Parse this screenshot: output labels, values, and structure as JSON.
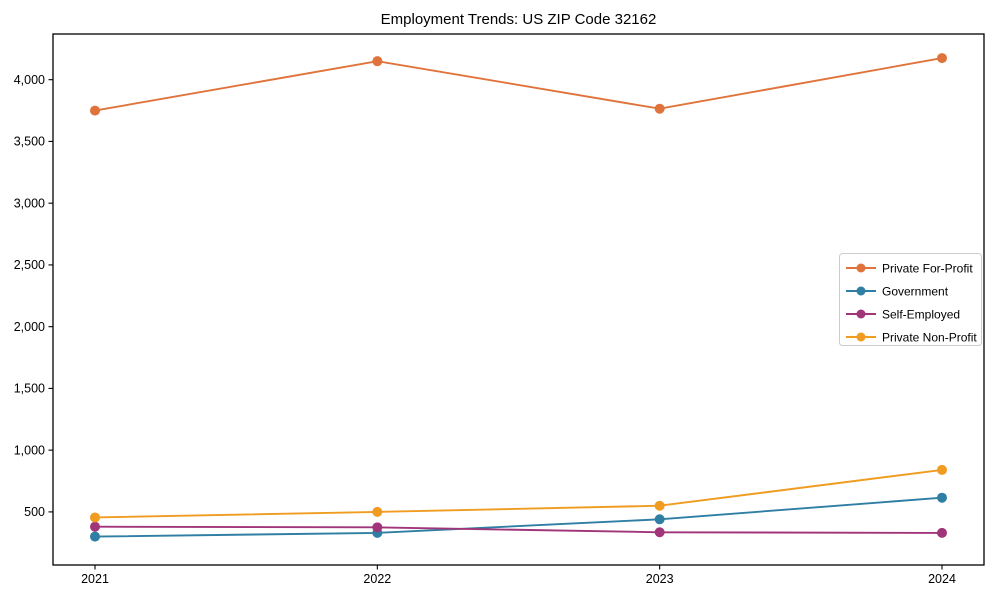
{
  "chart_data": {
    "type": "line",
    "title": "Employment Trends: US ZIP Code 32162",
    "xlabel": "",
    "ylabel": "",
    "categories": [
      "2021",
      "2022",
      "2023",
      "2024"
    ],
    "series": [
      {
        "name": "Private For-Profit",
        "color": "#e0733b",
        "values": [
          3750,
          4150,
          3765,
          4175
        ]
      },
      {
        "name": "Government",
        "color": "#2f7ea3",
        "values": [
          300,
          330,
          440,
          615
        ]
      },
      {
        "name": "Self-Employed",
        "color": "#a1357a",
        "values": [
          380,
          375,
          335,
          330
        ]
      },
      {
        "name": "Private Non-Profit",
        "color": "#ef9c20",
        "values": [
          455,
          500,
          550,
          840
        ]
      }
    ],
    "yticks": [
      500,
      1000,
      1500,
      2000,
      2500,
      3000,
      3500,
      4000
    ],
    "ytick_labels": [
      "500",
      "1,000",
      "1,500",
      "2,000",
      "2,500",
      "3,000",
      "3,500",
      "4,000"
    ],
    "ylim": [
      70,
      4370
    ],
    "grid": false,
    "legend_position": "center-right-inside",
    "marker": "circle",
    "frame_color": "#000000",
    "legend_border_color": "#cccccc",
    "background_color": "#ffffff"
  }
}
